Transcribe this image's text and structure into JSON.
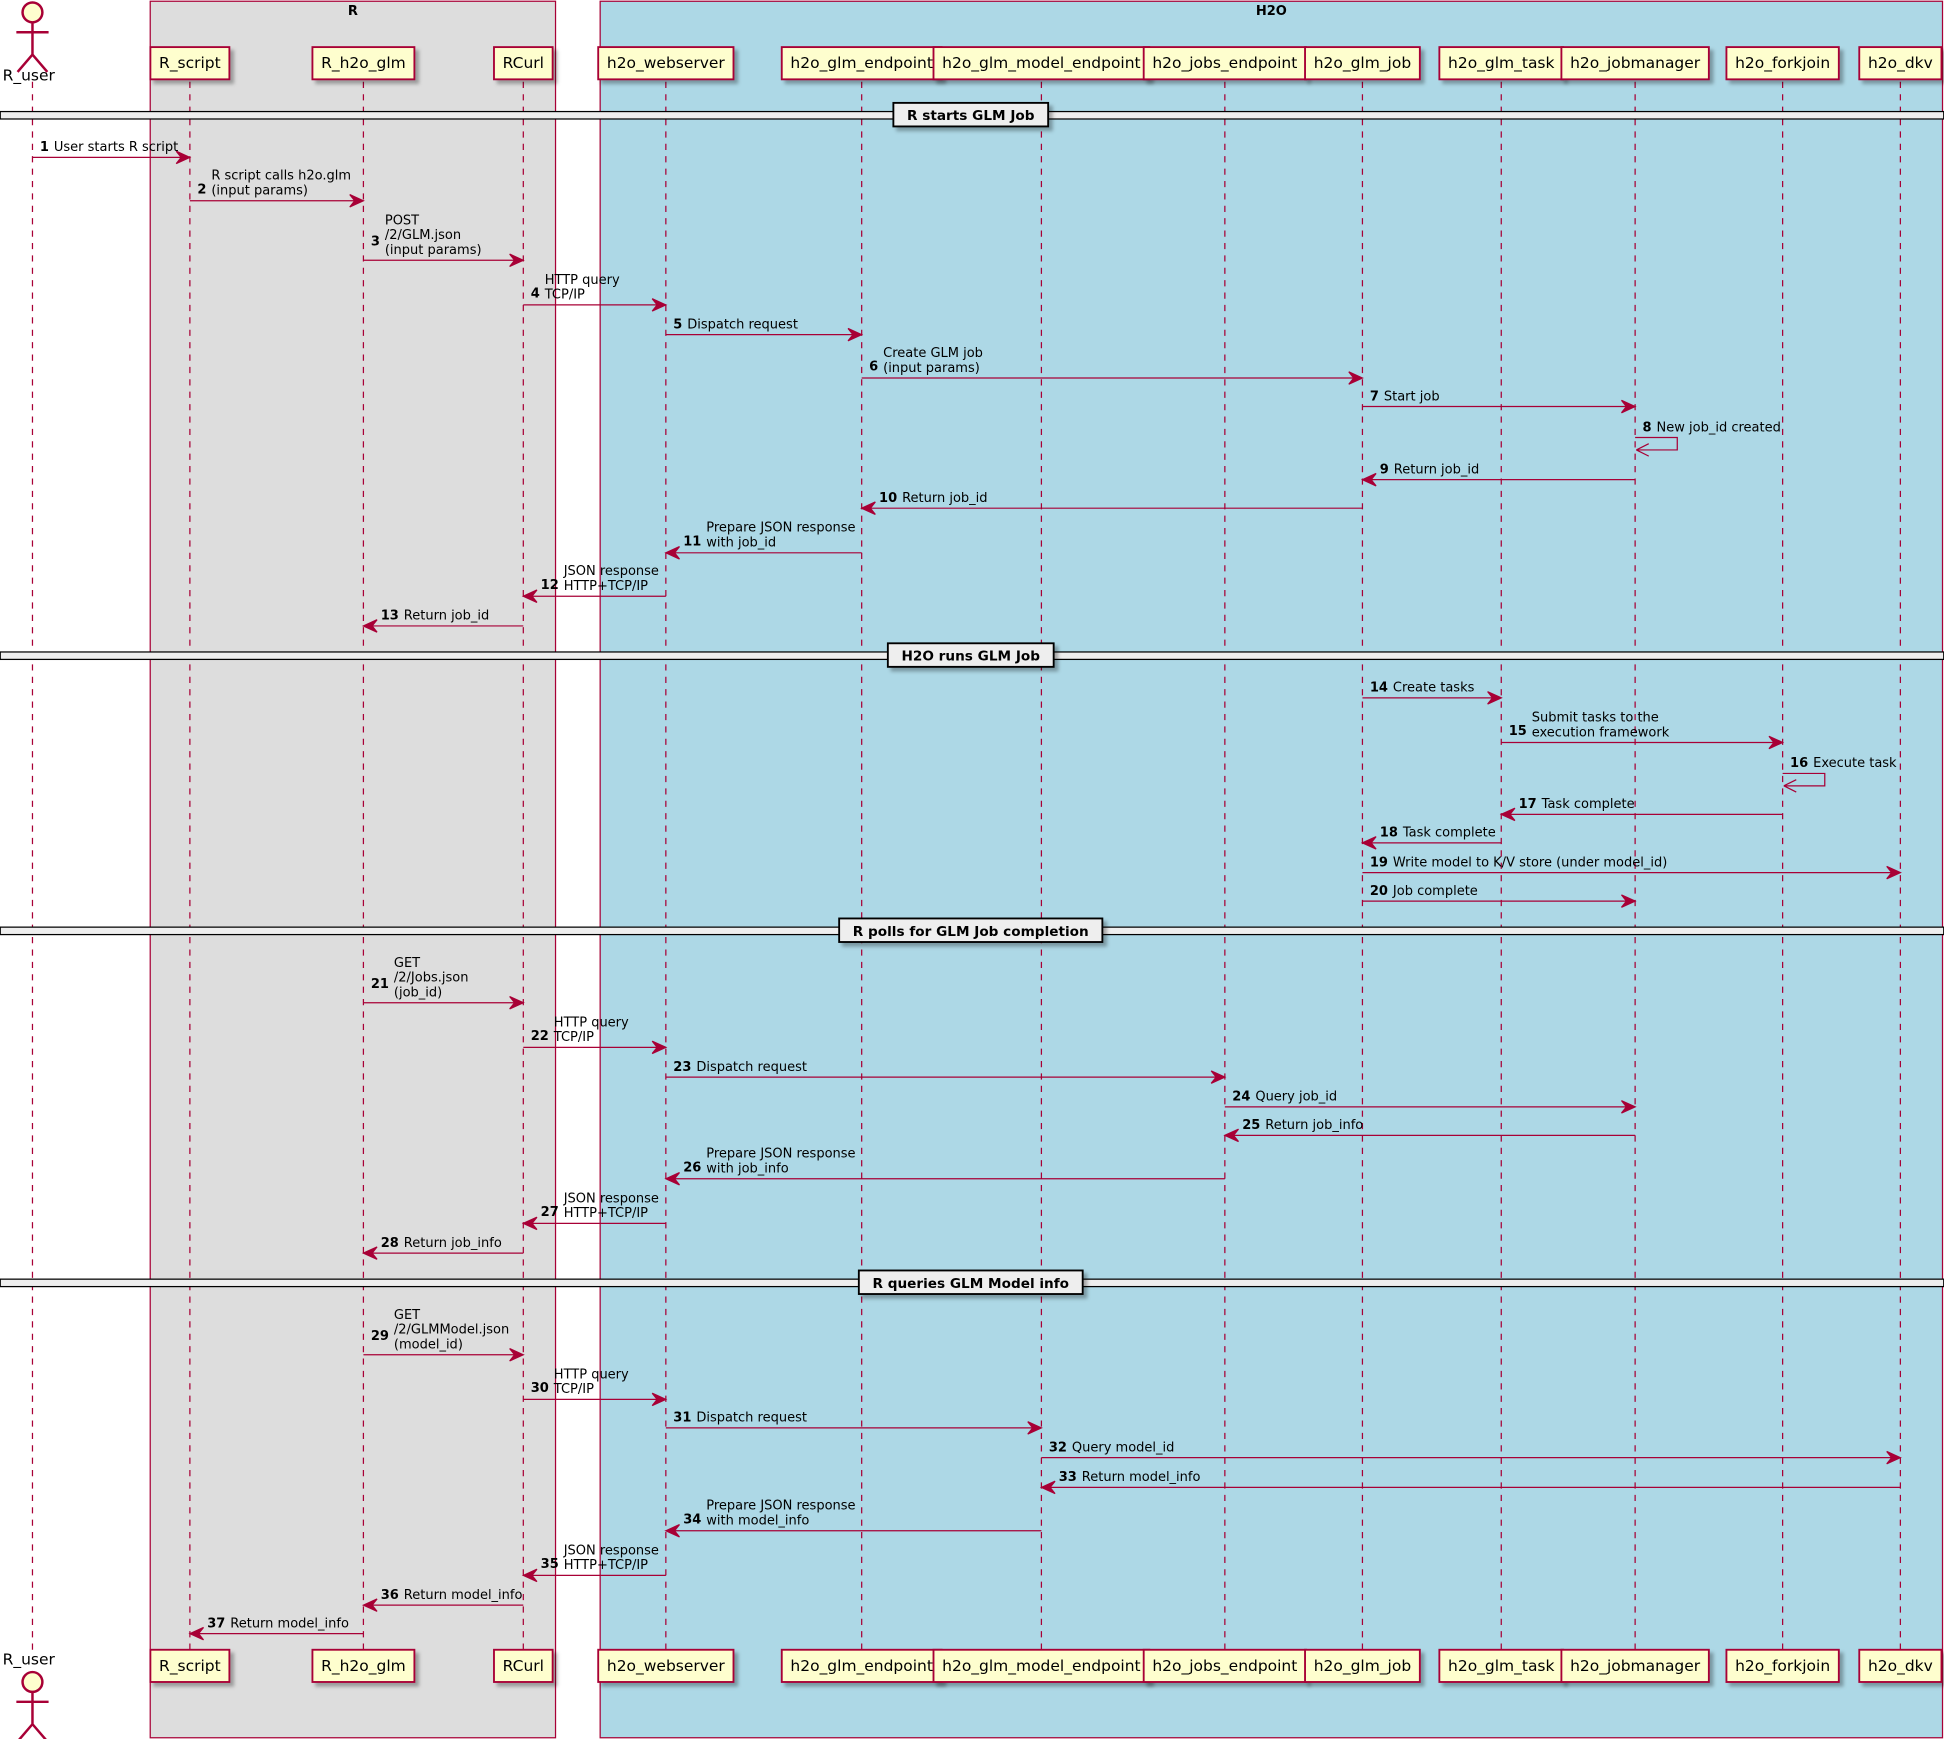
{
  "colors": {
    "line": "#A80036",
    "participant_fill": "#FEFECE",
    "group_R": "#DDDDDD",
    "group_H2O": "#ADD8E6",
    "divider_fill": "#EEEEEE"
  },
  "actor": {
    "name": "R_user"
  },
  "groups": [
    {
      "label": "R",
      "from": 1,
      "to": 3,
      "color": "#DDDDDD"
    },
    {
      "label": "H2O",
      "from": 4,
      "to": 12,
      "color": "#ADD8E6"
    }
  ],
  "participants": [
    "R_user",
    "R_script",
    "R_h2o_glm",
    "RCurl",
    "h2o_webserver",
    "h2o_glm_endpoint",
    "h2o_glm_model_endpoint",
    "h2o_jobs_endpoint",
    "h2o_glm_job",
    "h2o_glm_task",
    "h2o_jobmanager",
    "h2o_forkjoin",
    "h2o_dkv"
  ],
  "dividers": [
    "R starts GLM Job",
    "H2O runs GLM Job",
    "R polls for GLM Job completion",
    "R queries GLM Model info"
  ],
  "messages": [
    {
      "n": "1",
      "from": 0,
      "to": 1,
      "text": [
        "User starts R script"
      ]
    },
    {
      "n": "2",
      "from": 1,
      "to": 2,
      "text": [
        "R script calls h2o.glm",
        "(input params)"
      ]
    },
    {
      "n": "3",
      "from": 2,
      "to": 3,
      "text": [
        "POST",
        "/2/GLM.json",
        "(input params)"
      ]
    },
    {
      "n": "4",
      "from": 3,
      "to": 4,
      "text": [
        "HTTP query",
        "TCP/IP"
      ]
    },
    {
      "n": "5",
      "from": 4,
      "to": 5,
      "text": [
        "Dispatch request"
      ]
    },
    {
      "n": "6",
      "from": 5,
      "to": 8,
      "text": [
        "Create GLM job",
        "(input params)"
      ]
    },
    {
      "n": "7",
      "from": 8,
      "to": 10,
      "text": [
        "Start job"
      ]
    },
    {
      "n": "8",
      "from": 10,
      "to": 10,
      "text": [
        "New job_id created"
      ]
    },
    {
      "n": "9",
      "from": 10,
      "to": 8,
      "text": [
        "Return job_id"
      ]
    },
    {
      "n": "10",
      "from": 8,
      "to": 5,
      "text": [
        "Return job_id"
      ]
    },
    {
      "n": "11",
      "from": 5,
      "to": 4,
      "text": [
        "Prepare JSON response",
        "with job_id"
      ]
    },
    {
      "n": "12",
      "from": 4,
      "to": 3,
      "text": [
        "JSON response",
        "HTTP+TCP/IP"
      ]
    },
    {
      "n": "13",
      "from": 3,
      "to": 2,
      "text": [
        "Return job_id"
      ]
    },
    {
      "n": "14",
      "from": 8,
      "to": 9,
      "text": [
        "Create tasks"
      ]
    },
    {
      "n": "15",
      "from": 9,
      "to": 11,
      "text": [
        "Submit tasks to the",
        "execution framework"
      ]
    },
    {
      "n": "16",
      "from": 11,
      "to": 11,
      "text": [
        "Execute task"
      ]
    },
    {
      "n": "17",
      "from": 11,
      "to": 9,
      "text": [
        "Task complete"
      ]
    },
    {
      "n": "18",
      "from": 9,
      "to": 8,
      "text": [
        "Task complete"
      ]
    },
    {
      "n": "19",
      "from": 8,
      "to": 12,
      "text": [
        "Write model to K/V store (under model_id)"
      ]
    },
    {
      "n": "20",
      "from": 8,
      "to": 10,
      "text": [
        "Job complete"
      ]
    },
    {
      "n": "21",
      "from": 2,
      "to": 3,
      "text": [
        "GET",
        "/2/Jobs.json",
        "(job_id)"
      ]
    },
    {
      "n": "22",
      "from": 3,
      "to": 4,
      "text": [
        "HTTP query",
        "TCP/IP"
      ]
    },
    {
      "n": "23",
      "from": 4,
      "to": 7,
      "text": [
        "Dispatch request"
      ]
    },
    {
      "n": "24",
      "from": 7,
      "to": 10,
      "text": [
        "Query job_id"
      ]
    },
    {
      "n": "25",
      "from": 10,
      "to": 7,
      "text": [
        "Return job_info"
      ]
    },
    {
      "n": "26",
      "from": 7,
      "to": 4,
      "text": [
        "Prepare JSON response",
        "with job_info"
      ]
    },
    {
      "n": "27",
      "from": 4,
      "to": 3,
      "text": [
        "JSON response",
        "HTTP+TCP/IP"
      ]
    },
    {
      "n": "28",
      "from": 3,
      "to": 2,
      "text": [
        "Return job_info"
      ]
    },
    {
      "n": "29",
      "from": 2,
      "to": 3,
      "text": [
        "GET",
        "/2/GLMModel.json",
        "(model_id)"
      ]
    },
    {
      "n": "30",
      "from": 3,
      "to": 4,
      "text": [
        "HTTP query",
        "TCP/IP"
      ]
    },
    {
      "n": "31",
      "from": 4,
      "to": 6,
      "text": [
        "Dispatch request"
      ]
    },
    {
      "n": "32",
      "from": 6,
      "to": 12,
      "text": [
        "Query model_id"
      ]
    },
    {
      "n": "33",
      "from": 12,
      "to": 6,
      "text": [
        "Return model_info"
      ]
    },
    {
      "n": "34",
      "from": 6,
      "to": 4,
      "text": [
        "Prepare JSON response",
        "with model_info"
      ]
    },
    {
      "n": "35",
      "from": 4,
      "to": 3,
      "text": [
        "JSON response",
        "HTTP+TCP/IP"
      ]
    },
    {
      "n": "36",
      "from": 3,
      "to": 2,
      "text": [
        "Return model_info"
      ]
    },
    {
      "n": "37",
      "from": 2,
      "to": 1,
      "text": [
        "Return model_info"
      ]
    }
  ]
}
